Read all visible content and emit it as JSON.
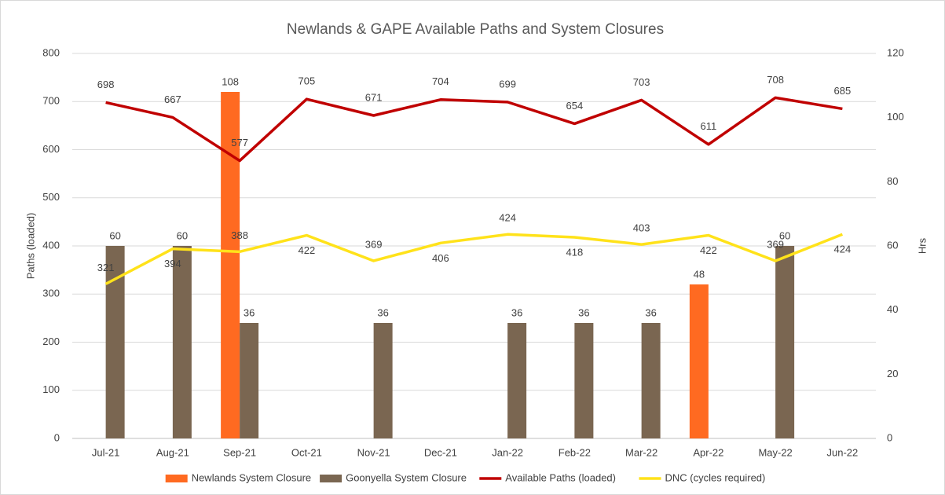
{
  "chart_data": {
    "type": "combo",
    "title": "Newlands & GAPE Available Paths and System Closures",
    "y_label": "Paths (loaded)",
    "y2_label": "Hrs",
    "categories": [
      "Jul-21",
      "Aug-21",
      "Sep-21",
      "Oct-21",
      "Nov-21",
      "Dec-21",
      "Jan-22",
      "Feb-22",
      "Mar-22",
      "Apr-22",
      "May-22",
      "Jun-22"
    ],
    "ylim": [
      0,
      800
    ],
    "yticks": [
      0,
      100,
      200,
      300,
      400,
      500,
      600,
      700,
      800
    ],
    "y2lim": [
      0,
      120
    ],
    "y2ticks": [
      0,
      20,
      40,
      60,
      80,
      100,
      120
    ],
    "grid": true,
    "legend": "bottom",
    "series": [
      {
        "name": "Newlands System Closure",
        "type": "bar",
        "axis": "y2",
        "color": "#ff6a21",
        "values": [
          null,
          null,
          108,
          null,
          null,
          null,
          null,
          null,
          null,
          48,
          null,
          null
        ]
      },
      {
        "name": "Goonyella System Closure",
        "type": "bar",
        "axis": "y2",
        "color": "#7a6651",
        "values": [
          60,
          60,
          36,
          null,
          36,
          null,
          36,
          36,
          36,
          null,
          60,
          null
        ]
      },
      {
        "name": "Available Paths (loaded)",
        "type": "line",
        "color": "#c00000",
        "values": [
          698,
          667,
          577,
          705,
          671,
          704,
          699,
          654,
          703,
          611,
          708,
          685
        ]
      },
      {
        "name": "DNC (cycles required)",
        "type": "line",
        "color": "#ffe21a",
        "values": [
          321,
          394,
          388,
          422,
          369,
          406,
          424,
          418,
          403,
          422,
          369,
          424
        ]
      }
    ]
  }
}
